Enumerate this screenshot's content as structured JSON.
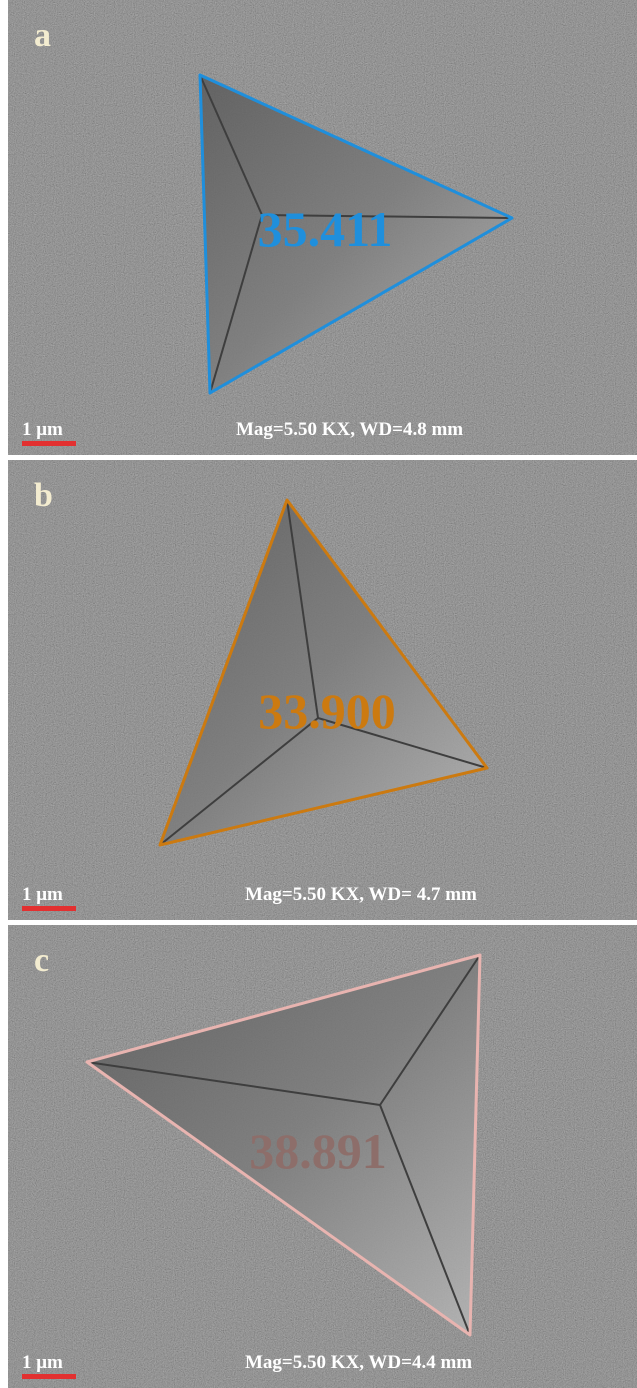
{
  "panels": [
    {
      "label": "a",
      "measurement": "35.411",
      "scale": "1 μm",
      "info": "Mag=5.50 KX, WD=4.8 mm"
    },
    {
      "label": "b",
      "measurement": "33.900",
      "scale": "1 μm",
      "info": "Mag=5.50 KX, WD= 4.7 mm"
    },
    {
      "label": "c",
      "measurement": "38.891",
      "scale": "1 μm",
      "info": "Mag=5.50 KX, WD=4.4 mm"
    }
  ]
}
